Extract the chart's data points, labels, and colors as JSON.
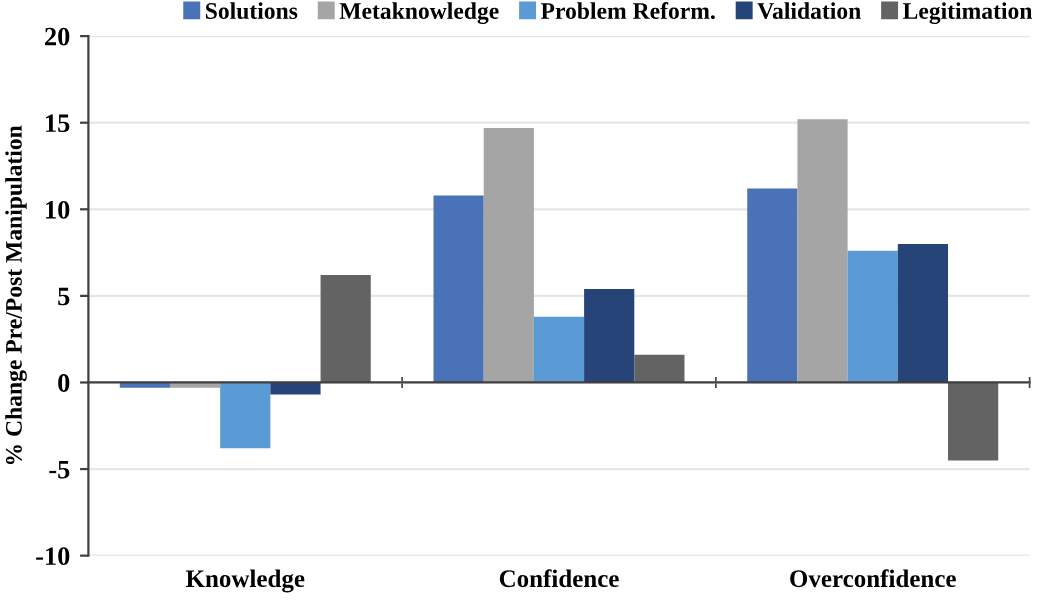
{
  "chart_data": {
    "type": "bar",
    "ylabel": "% Change Pre/Post Manipulation",
    "categories": [
      "Knowledge",
      "Confidence",
      "Overconfidence"
    ],
    "series": [
      {
        "name": "Solutions",
        "color": "#4a72b8",
        "values": [
          -0.3,
          10.8,
          11.2
        ]
      },
      {
        "name": "Metaknowledge",
        "color": "#a5a5a5",
        "values": [
          -0.3,
          14.7,
          15.2
        ]
      },
      {
        "name": "Problem Reform.",
        "color": "#5b9bd5",
        "values": [
          -3.8,
          3.8,
          7.6
        ]
      },
      {
        "name": "Validation",
        "color": "#264478",
        "values": [
          -0.7,
          5.4,
          8.0
        ]
      },
      {
        "name": "Legitimation",
        "color": "#636363",
        "values": [
          6.2,
          1.6,
          -4.5
        ]
      }
    ],
    "ylim": [
      -10,
      20
    ],
    "yticks": [
      -10,
      -5,
      0,
      5,
      10,
      15,
      20
    ],
    "grid": "y",
    "legend": "top"
  }
}
